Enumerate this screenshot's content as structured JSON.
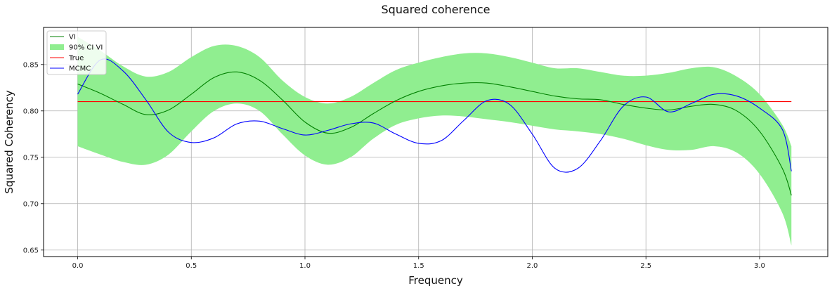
{
  "chart_data": {
    "type": "line",
    "title": "Squared coherence",
    "xlabel": "Frequency",
    "ylabel": "Squared Coherency",
    "xlim": [
      -0.15,
      3.3
    ],
    "ylim": [
      0.643,
      0.89
    ],
    "xticks": [
      0.0,
      0.5,
      1.0,
      1.5,
      2.0,
      2.5,
      3.0
    ],
    "xtick_labels": [
      "0.0",
      "0.5",
      "1.0",
      "1.5",
      "2.0",
      "2.5",
      "3.0"
    ],
    "yticks": [
      0.65,
      0.7,
      0.75,
      0.8,
      0.85
    ],
    "ytick_labels": [
      "0.65",
      "0.70",
      "0.75",
      "0.80",
      "0.85"
    ],
    "grid": true,
    "legend_position": "top-left",
    "legend": [
      {
        "label": "VI",
        "color": "#008000",
        "kind": "line"
      },
      {
        "label": "90% CI VI",
        "color": "#90ee90",
        "kind": "patch"
      },
      {
        "label": "True",
        "color": "#ff0000",
        "kind": "line"
      },
      {
        "label": "MCMC",
        "color": "#0000ff",
        "kind": "line"
      }
    ],
    "x": [
      0.0,
      0.1,
      0.2,
      0.3,
      0.4,
      0.5,
      0.6,
      0.7,
      0.8,
      0.9,
      1.0,
      1.1,
      1.2,
      1.3,
      1.4,
      1.5,
      1.6,
      1.7,
      1.8,
      1.9,
      2.0,
      2.1,
      2.2,
      2.3,
      2.4,
      2.5,
      2.6,
      2.7,
      2.8,
      2.9,
      3.0,
      3.1,
      3.14
    ],
    "series": [
      {
        "name": "VI",
        "color": "#008000",
        "values": [
          0.829,
          0.819,
          0.807,
          0.796,
          0.801,
          0.818,
          0.836,
          0.842,
          0.833,
          0.812,
          0.788,
          0.776,
          0.782,
          0.797,
          0.811,
          0.821,
          0.827,
          0.83,
          0.83,
          0.826,
          0.821,
          0.816,
          0.813,
          0.812,
          0.807,
          0.803,
          0.801,
          0.805,
          0.807,
          0.8,
          0.778,
          0.738,
          0.709
        ]
      },
      {
        "name": "True",
        "color": "#ff0000",
        "values": [
          0.81,
          0.81,
          0.81,
          0.81,
          0.81,
          0.81,
          0.81,
          0.81,
          0.81,
          0.81,
          0.81,
          0.81,
          0.81,
          0.81,
          0.81,
          0.81,
          0.81,
          0.81,
          0.81,
          0.81,
          0.81,
          0.81,
          0.81,
          0.81,
          0.81,
          0.81,
          0.81,
          0.81,
          0.81,
          0.81,
          0.81,
          0.81,
          0.81
        ]
      },
      {
        "name": "MCMC",
        "color": "#0000ff",
        "values": [
          0.818,
          0.855,
          0.843,
          0.812,
          0.777,
          0.766,
          0.771,
          0.786,
          0.789,
          0.781,
          0.774,
          0.779,
          0.786,
          0.787,
          0.775,
          0.765,
          0.768,
          0.79,
          0.811,
          0.807,
          0.775,
          0.738,
          0.738,
          0.768,
          0.805,
          0.815,
          0.799,
          0.808,
          0.818,
          0.816,
          0.803,
          0.78,
          0.735
        ]
      }
    ],
    "band": {
      "name": "90% CI VI",
      "color": "#90ee90",
      "lower": [
        0.762,
        0.753,
        0.745,
        0.742,
        0.753,
        0.778,
        0.8,
        0.808,
        0.8,
        0.775,
        0.752,
        0.742,
        0.75,
        0.77,
        0.785,
        0.792,
        0.795,
        0.794,
        0.791,
        0.788,
        0.784,
        0.78,
        0.778,
        0.775,
        0.77,
        0.763,
        0.758,
        0.758,
        0.762,
        0.755,
        0.732,
        0.69,
        0.655
      ],
      "upper": [
        0.88,
        0.865,
        0.848,
        0.837,
        0.842,
        0.858,
        0.87,
        0.87,
        0.858,
        0.833,
        0.815,
        0.808,
        0.815,
        0.83,
        0.844,
        0.852,
        0.858,
        0.862,
        0.862,
        0.858,
        0.852,
        0.846,
        0.846,
        0.842,
        0.838,
        0.838,
        0.841,
        0.846,
        0.847,
        0.837,
        0.818,
        0.785,
        0.762
      ]
    }
  }
}
